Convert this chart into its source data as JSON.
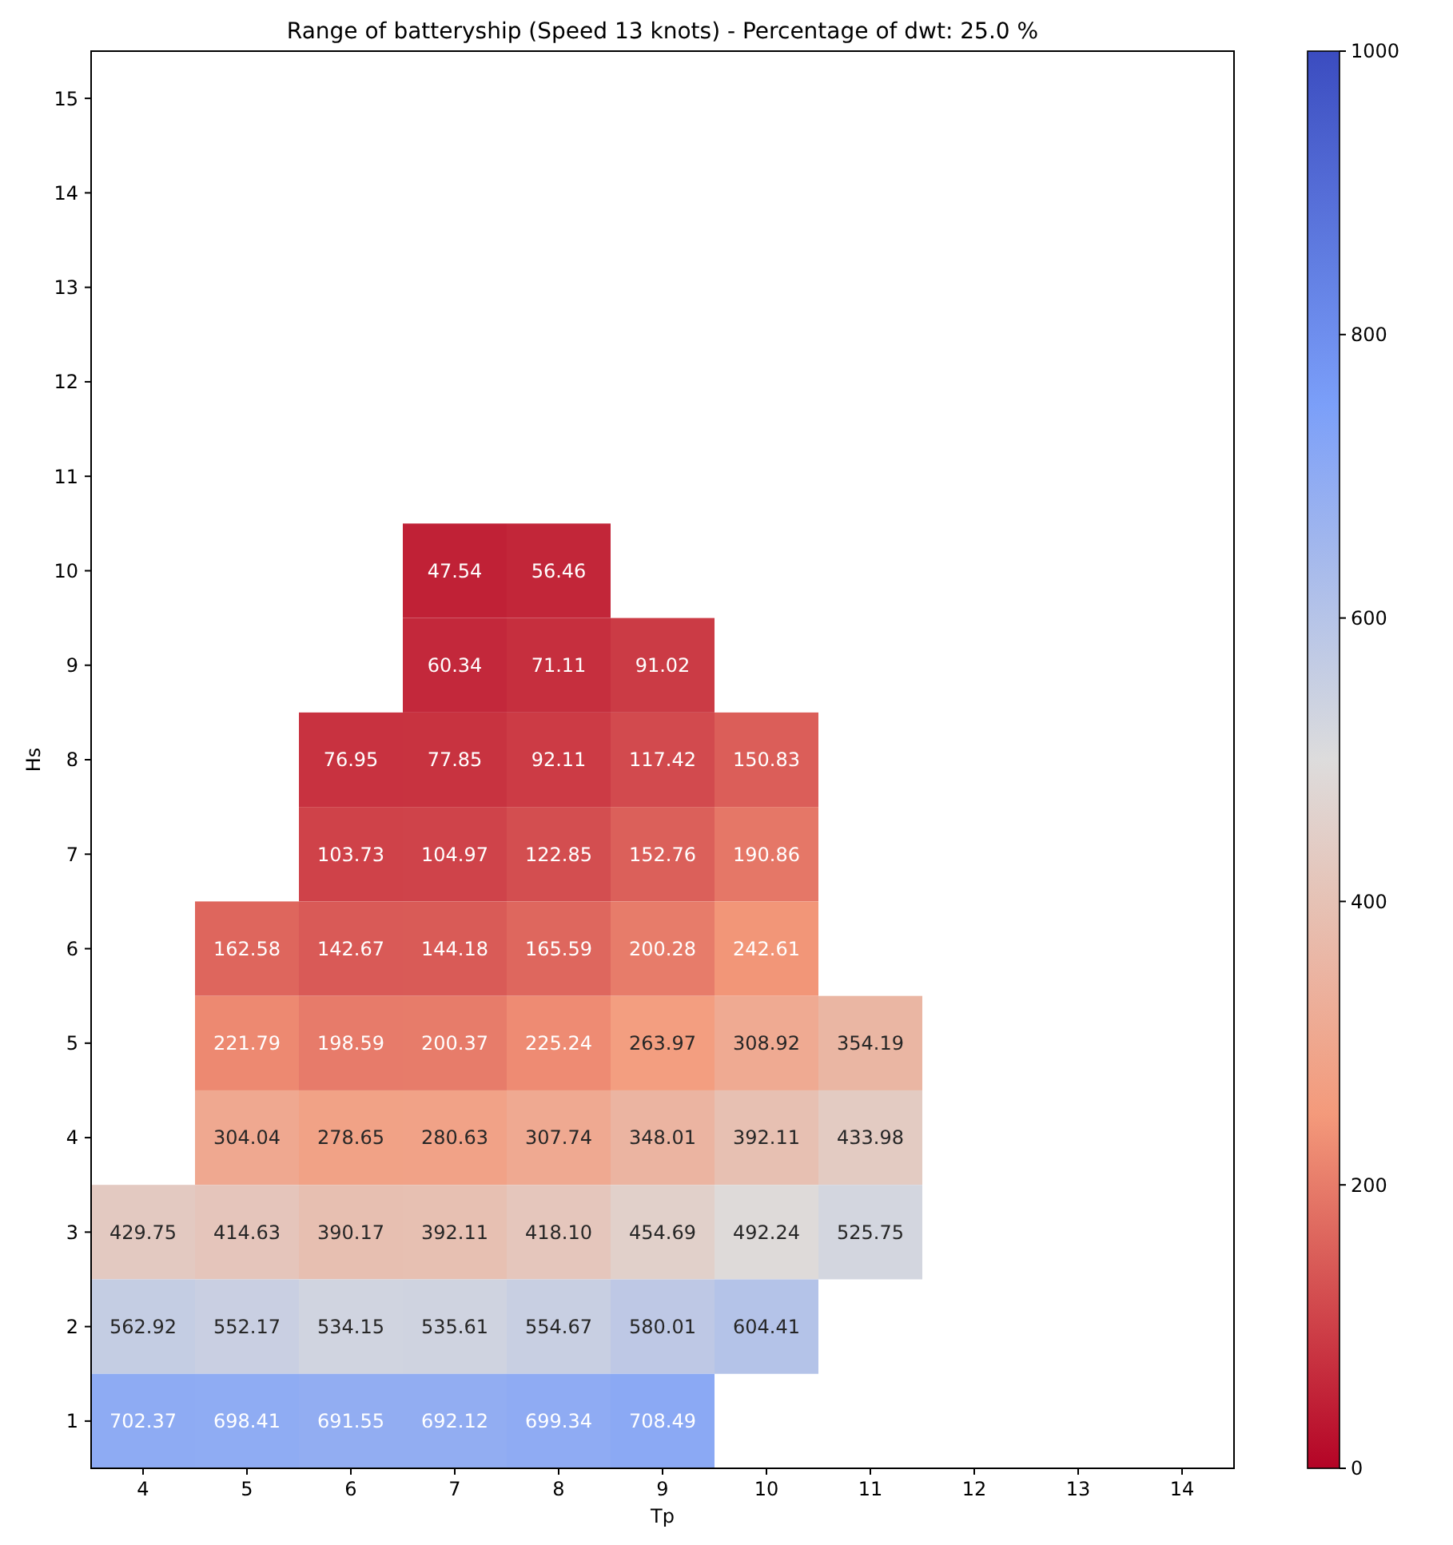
{
  "chart_data": {
    "type": "heatmap",
    "title": "Range of batteryship (Speed 13 knots) - Percentage of dwt: 25.0 %",
    "xlabel": "Tp",
    "ylabel": "Hs",
    "categories": [
      "4",
      "5",
      "6",
      "7",
      "8",
      "9",
      "10",
      "11",
      "12",
      "13",
      "14"
    ],
    "y_categories": [
      "15",
      "14",
      "13",
      "12",
      "11",
      "10",
      "9",
      "8",
      "7",
      "6",
      "5",
      "4",
      "3",
      "2",
      "1"
    ],
    "cells": [
      [
        null,
        null,
        null,
        null,
        null,
        null,
        null,
        null,
        null,
        null,
        null
      ],
      [
        null,
        null,
        null,
        null,
        null,
        null,
        null,
        null,
        null,
        null,
        null
      ],
      [
        null,
        null,
        null,
        null,
        null,
        null,
        null,
        null,
        null,
        null,
        null
      ],
      [
        null,
        null,
        null,
        null,
        null,
        null,
        null,
        null,
        null,
        null,
        null
      ],
      [
        null,
        null,
        null,
        null,
        null,
        null,
        null,
        null,
        null,
        null,
        null
      ],
      [
        null,
        null,
        null,
        47.54,
        56.46,
        null,
        null,
        null,
        null,
        null,
        null
      ],
      [
        null,
        null,
        null,
        60.34,
        71.11,
        91.02,
        null,
        null,
        null,
        null,
        null
      ],
      [
        null,
        null,
        76.95,
        77.85,
        92.11,
        117.42,
        150.83,
        null,
        null,
        null,
        null
      ],
      [
        null,
        null,
        103.73,
        104.97,
        122.85,
        152.76,
        190.86,
        null,
        null,
        null,
        null
      ],
      [
        null,
        162.58,
        142.67,
        144.18,
        165.59,
        200.28,
        242.61,
        null,
        null,
        null,
        null
      ],
      [
        null,
        221.79,
        198.59,
        200.37,
        225.24,
        263.97,
        308.92,
        354.19,
        null,
        null,
        null
      ],
      [
        null,
        304.04,
        278.65,
        280.63,
        307.74,
        348.01,
        392.11,
        433.98,
        null,
        null,
        null
      ],
      [
        429.75,
        414.63,
        390.17,
        392.11,
        418.1,
        454.69,
        492.24,
        525.75,
        null,
        null,
        null
      ],
      [
        562.92,
        552.17,
        534.15,
        535.61,
        554.67,
        580.01,
        604.41,
        null,
        null,
        null,
        null
      ],
      [
        702.37,
        698.41,
        691.55,
        692.12,
        699.34,
        708.49,
        null,
        null,
        null,
        null,
        null
      ]
    ],
    "cell_labels": [
      [
        null,
        null,
        null,
        null,
        null,
        null,
        null,
        null,
        null,
        null,
        null
      ],
      [
        null,
        null,
        null,
        null,
        null,
        null,
        null,
        null,
        null,
        null,
        null
      ],
      [
        null,
        null,
        null,
        null,
        null,
        null,
        null,
        null,
        null,
        null,
        null
      ],
      [
        null,
        null,
        null,
        null,
        null,
        null,
        null,
        null,
        null,
        null,
        null
      ],
      [
        null,
        null,
        null,
        null,
        null,
        null,
        null,
        null,
        null,
        null,
        null
      ],
      [
        null,
        null,
        null,
        "47.54",
        "56.46",
        null,
        null,
        null,
        null,
        null,
        null
      ],
      [
        null,
        null,
        null,
        "60.34",
        "71.11",
        "91.02",
        null,
        null,
        null,
        null,
        null
      ],
      [
        null,
        null,
        "76.95",
        "77.85",
        "92.11",
        "117.42",
        "150.83",
        null,
        null,
        null,
        null
      ],
      [
        null,
        null,
        "103.73",
        "104.97",
        "122.85",
        "152.76",
        "190.86",
        null,
        null,
        null,
        null
      ],
      [
        null,
        "162.58",
        "142.67",
        "144.18",
        "165.59",
        "200.28",
        "242.61",
        null,
        null,
        null,
        null
      ],
      [
        null,
        "221.79",
        "198.59",
        "200.37",
        "225.24",
        "263.97",
        "308.92",
        "354.19",
        null,
        null,
        null
      ],
      [
        null,
        "304.04",
        "278.65",
        "280.63",
        "307.74",
        "348.01",
        "392.11",
        "433.98",
        null,
        null,
        null
      ],
      [
        "429.75",
        "414.63",
        "390.17",
        "392.11",
        "418.10",
        "454.69",
        "492.24",
        "525.75",
        null,
        null,
        null
      ],
      [
        "562.92",
        "552.17",
        "534.15",
        "535.61",
        "554.67",
        "580.01",
        "604.41",
        null,
        null,
        null,
        null
      ],
      [
        "702.37",
        "698.41",
        "691.55",
        "692.12",
        "699.34",
        "708.49",
        null,
        null,
        null,
        null,
        null
      ]
    ],
    "clim": [
      0,
      1000
    ],
    "cticks": [
      0,
      200,
      400,
      600,
      800,
      1000
    ]
  }
}
